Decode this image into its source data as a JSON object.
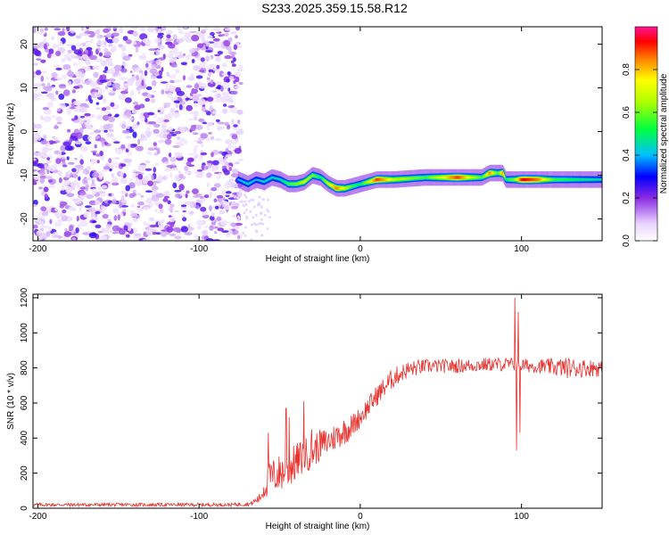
{
  "title": "S233.2025.359.15.58.R12",
  "chart_data": [
    {
      "type": "heatmap",
      "xlabel": "Height of straight line (km)",
      "ylabel": "Frequency (Hz)",
      "xlim": [
        -203,
        150
      ],
      "ylim": [
        -25,
        24
      ],
      "xticks": [
        -200,
        -100,
        0,
        100
      ],
      "yticks": [
        -20,
        -10,
        0,
        10,
        20
      ],
      "colorbar": {
        "label": "Normalized spectral amplitude",
        "range": [
          0,
          1
        ],
        "ticks": [
          "0.0",
          "0.2",
          "0.4",
          "0.6",
          "0.8"
        ]
      },
      "noise_region": {
        "x": [
          -203,
          -74
        ],
        "frequency": [
          -25,
          24
        ],
        "amplitude": "low (0.05-0.25)"
      },
      "ridge": {
        "x": [
          -76,
          -70,
          -65,
          -60,
          -55,
          -50,
          -45,
          -40,
          -35,
          -30,
          -25,
          -20,
          -15,
          -10,
          -5,
          0,
          10,
          20,
          40,
          60,
          75,
          80,
          85,
          88,
          90,
          95,
          100,
          110,
          120,
          135,
          150
        ],
        "frequency": [
          -11,
          -12,
          -11,
          -11.5,
          -10.5,
          -11,
          -12,
          -12,
          -11.5,
          -10,
          -10.5,
          -12,
          -13,
          -13,
          -12.5,
          -12,
          -11,
          -11,
          -10.5,
          -10.5,
          -10.5,
          -9.5,
          -9.5,
          -9.5,
          -11,
          -11,
          -11,
          -11,
          -11,
          -11,
          -11
        ],
        "amplitude": [
          0.4,
          0.45,
          0.4,
          0.45,
          0.45,
          0.45,
          0.55,
          0.6,
          0.7,
          0.6,
          0.5,
          0.7,
          0.85,
          0.7,
          0.55,
          0.5,
          0.9,
          0.7,
          0.55,
          0.9,
          0.55,
          0.85,
          0.55,
          0.85,
          0.5,
          0.6,
          0.95,
          0.85,
          0.55,
          0.5,
          0.45
        ]
      }
    },
    {
      "type": "line",
      "xlabel": "Height of straight line (km)",
      "ylabel": "SNR (10 * v/v)",
      "xlim": [
        -203,
        150
      ],
      "ylim": [
        0,
        1220
      ],
      "xticks": [
        -200,
        -100,
        0,
        100
      ],
      "yticks": [
        0,
        200,
        400,
        600,
        800,
        1000,
        1200
      ],
      "series": [
        {
          "color": "#e8322e",
          "envelope": {
            "x": [
              -203,
              -80,
              -68,
              -62,
              -58,
              -55,
              -50,
              -45,
              -40,
              -35,
              -30,
              -25,
              -20,
              -15,
              -10,
              -5,
              0,
              5,
              10,
              15,
              20,
              25,
              30,
              40,
              50,
              60,
              70,
              80,
              90,
              95,
              100,
              110,
              120,
              130,
              140,
              150
            ],
            "mean": [
              20,
              20,
              25,
              60,
              150,
              180,
              200,
              220,
              260,
              300,
              320,
              360,
              380,
              410,
              440,
              470,
              520,
              580,
              640,
              690,
              740,
              770,
              790,
              810,
              810,
              810,
              815,
              820,
              820,
              820,
              815,
              810,
              805,
              800,
              800,
              800
            ],
            "noise": [
              10,
              10,
              12,
              30,
              90,
              100,
              110,
              110,
              110,
              100,
              100,
              90,
              80,
              80,
              80,
              70,
              60,
              60,
              60,
              60,
              60,
              50,
              50,
              40,
              40,
              40,
              40,
              40,
              40,
              40,
              40,
              40,
              50,
              60,
              50,
              50
            ]
          },
          "spikes": [
            {
              "x": -57,
              "y": 430
            },
            {
              "x": -46,
              "y": 570
            },
            {
              "x": -44,
              "y": 520
            },
            {
              "x": -35,
              "y": 610
            },
            {
              "x": -30,
              "y": 450
            },
            {
              "x": 96,
              "y": 1200
            },
            {
              "x": 97,
              "y": 330
            },
            {
              "x": 98,
              "y": 1120
            },
            {
              "x": 99,
              "y": 430
            }
          ]
        }
      ]
    }
  ]
}
